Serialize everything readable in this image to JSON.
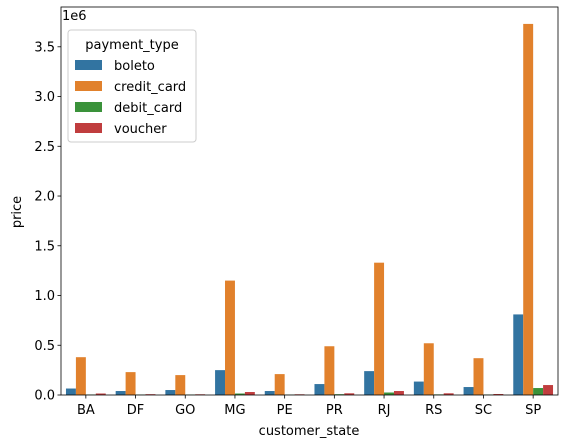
{
  "chart_data": {
    "type": "bar",
    "xlabel": "customer_state",
    "ylabel": "price",
    "y_multiplier": "1e6",
    "categories": [
      "BA",
      "DF",
      "GO",
      "MG",
      "PE",
      "PR",
      "RJ",
      "RS",
      "SC",
      "SP"
    ],
    "ylim": [
      0,
      3.9
    ],
    "yticks": [
      "0.0",
      "0.5",
      "1.0",
      "1.5",
      "2.0",
      "2.5",
      "3.0",
      "3.5"
    ],
    "legend_title": "payment_type",
    "legend_position": "upper-left",
    "series": [
      {
        "name": "boleto",
        "color": "#3274a1",
        "values": [
          0.065,
          0.04,
          0.05,
          0.25,
          0.04,
          0.11,
          0.24,
          0.135,
          0.08,
          0.81
        ]
      },
      {
        "name": "credit_card",
        "color": "#e1812c",
        "values": [
          0.38,
          0.23,
          0.2,
          1.15,
          0.21,
          0.49,
          1.33,
          0.52,
          0.37,
          3.73
        ]
      },
      {
        "name": "debit_card",
        "color": "#3a923a",
        "values": [
          0.005,
          0.004,
          0.004,
          0.015,
          0.003,
          0.008,
          0.025,
          0.006,
          0.005,
          0.07
        ]
      },
      {
        "name": "voucher",
        "color": "#c03d3e",
        "values": [
          0.015,
          0.008,
          0.007,
          0.03,
          0.007,
          0.017,
          0.04,
          0.017,
          0.01,
          0.1
        ]
      }
    ]
  }
}
